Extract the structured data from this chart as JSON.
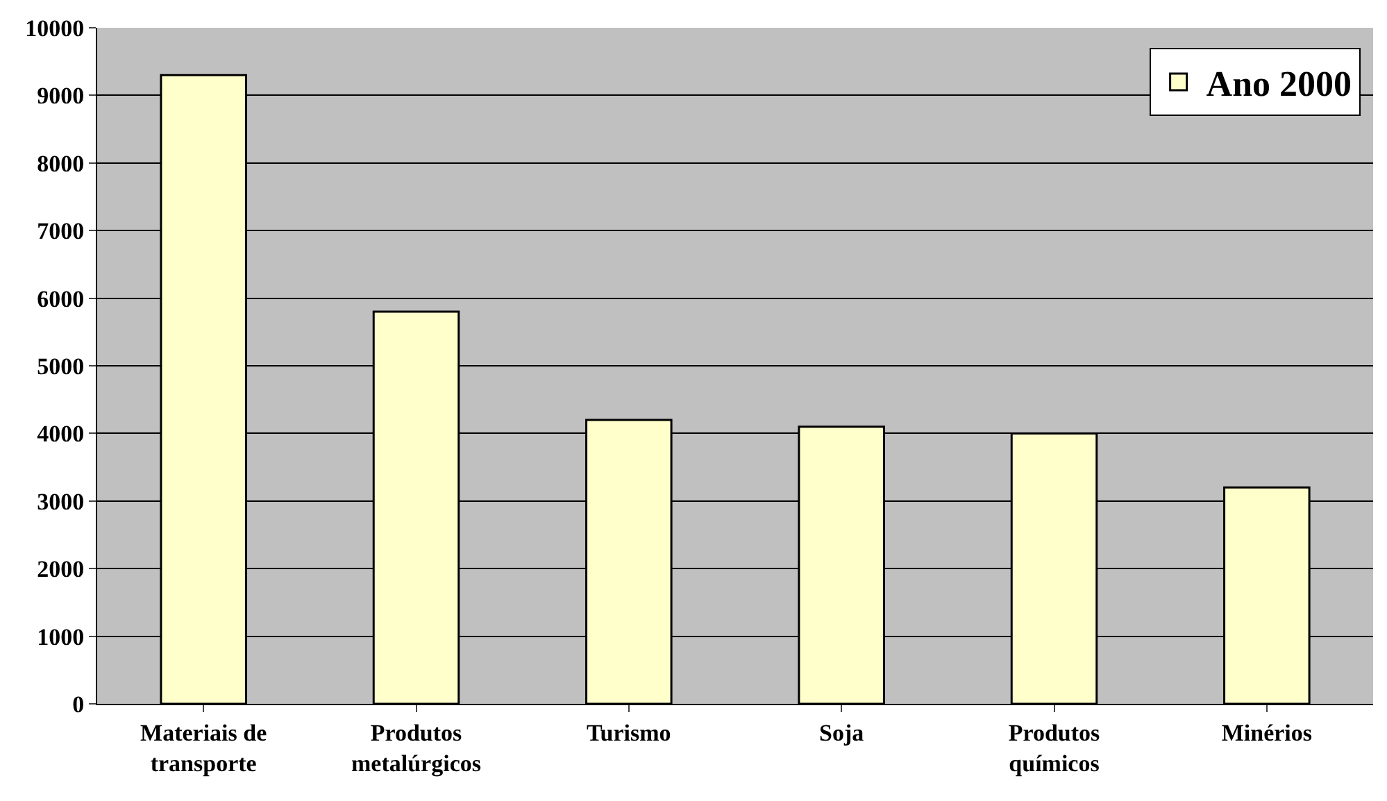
{
  "chart_data": {
    "type": "bar",
    "categories": [
      "Materiais de transporte",
      "Produtos metalúrgicos",
      "Turismo",
      "Soja",
      "Produtos químicos",
      "Minérios"
    ],
    "series": [
      {
        "name": "Ano 2000",
        "color": "#ffffcc",
        "values": [
          9300,
          5800,
          4200,
          4100,
          4000,
          3200
        ]
      }
    ],
    "ylim": [
      0,
      10000
    ],
    "yticks": [
      0,
      1000,
      2000,
      3000,
      4000,
      5000,
      6000,
      7000,
      8000,
      9000,
      10000
    ],
    "grid": "y",
    "legend": "top right"
  }
}
